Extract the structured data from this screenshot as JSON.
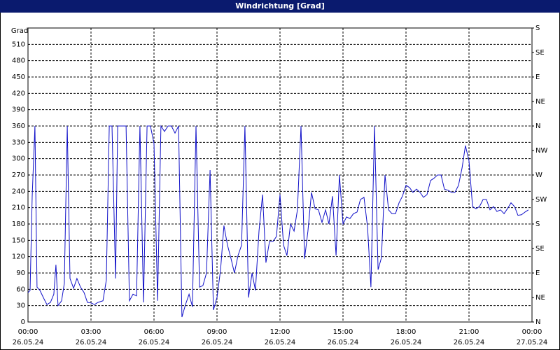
{
  "chart_data": {
    "type": "line",
    "title": "Windrichtung [Grad]",
    "ylabel": "Grad",
    "color": "#1010c8",
    "grid": true,
    "xlim": [
      0,
      24
    ],
    "ylim": [
      0,
      540
    ],
    "y2lim": [
      0,
      540
    ],
    "xticks": [
      {
        "value": 0,
        "label": "00:00"
      },
      {
        "value": 3,
        "label": "03:00"
      },
      {
        "value": 6,
        "label": "06:00"
      },
      {
        "value": 9,
        "label": "09:00"
      },
      {
        "value": 12,
        "label": "12:00"
      },
      {
        "value": 15,
        "label": "15:00"
      },
      {
        "value": 18,
        "label": "18:00"
      },
      {
        "value": 21,
        "label": "21:00"
      },
      {
        "value": 24,
        "label": "00:00"
      }
    ],
    "xtick_dates": [
      "26.05.24",
      "26.05.24",
      "26.05.24",
      "26.05.24",
      "26.05.24",
      "26.05.24",
      "26.05.24",
      "26.05.24",
      "27.05.24"
    ],
    "yticks": [
      0,
      30,
      60,
      90,
      120,
      150,
      180,
      210,
      240,
      270,
      300,
      330,
      360,
      390,
      420,
      450,
      480,
      510
    ],
    "y2ticks": [
      {
        "value": 0,
        "label": "N"
      },
      {
        "value": 45,
        "label": "NE"
      },
      {
        "value": 90,
        "label": "E"
      },
      {
        "value": 135,
        "label": "SE"
      },
      {
        "value": 180,
        "label": "S"
      },
      {
        "value": 225,
        "label": "SW"
      },
      {
        "value": 270,
        "label": "W"
      },
      {
        "value": 315,
        "label": "NW"
      },
      {
        "value": 360,
        "label": "N"
      },
      {
        "value": 405,
        "label": "NE"
      },
      {
        "value": 450,
        "label": "E"
      },
      {
        "value": 495,
        "label": "SE"
      },
      {
        "value": 540,
        "label": "S"
      }
    ],
    "x": [
      0,
      0.1,
      0.2,
      0.33,
      0.43,
      0.57,
      0.73,
      0.9,
      1.07,
      1.23,
      1.33,
      1.43,
      1.6,
      1.73,
      1.87,
      2,
      2.17,
      2.33,
      2.5,
      2.67,
      2.83,
      3,
      3.17,
      3.33,
      3.57,
      3.73,
      3.87,
      4,
      4.17,
      4.27,
      4.4,
      4.53,
      4.67,
      4.83,
      5,
      5.17,
      5.33,
      5.5,
      5.67,
      5.83,
      6,
      6.17,
      6.33,
      6.5,
      6.67,
      6.83,
      7,
      7.17,
      7.33,
      7.5,
      7.67,
      7.83,
      8,
      8.17,
      8.33,
      8.5,
      8.67,
      8.83,
      9,
      9.17,
      9.33,
      9.5,
      9.67,
      9.83,
      10,
      10.17,
      10.33,
      10.5,
      10.67,
      10.83,
      11,
      11.17,
      11.33,
      11.5,
      11.67,
      11.83,
      12,
      12.17,
      12.33,
      12.5,
      12.67,
      12.83,
      13,
      13.17,
      13.33,
      13.5,
      13.67,
      13.83,
      14,
      14.17,
      14.33,
      14.5,
      14.67,
      14.83,
      15,
      15.17,
      15.33,
      15.5,
      15.67,
      15.83,
      16,
      16.17,
      16.33,
      16.5,
      16.67,
      16.83,
      17,
      17.17,
      17.33,
      17.5,
      17.67,
      17.83,
      18,
      18.17,
      18.33,
      18.5,
      18.67,
      18.83,
      19,
      19.17,
      19.33,
      19.5,
      19.67,
      19.83,
      20,
      20.17,
      20.33,
      20.5,
      20.67,
      20.83,
      21,
      21.17,
      21.33,
      21.5,
      21.67,
      21.83,
      22,
      22.17,
      22.33,
      22.5,
      22.67,
      22.83,
      23,
      23.17,
      23.33,
      23.5,
      23.67,
      23.83
    ],
    "values": [
      54,
      58,
      231,
      360,
      64,
      58,
      45,
      32,
      36,
      51,
      105,
      30,
      39,
      71,
      360,
      80,
      62,
      80,
      64,
      54,
      36,
      35,
      32,
      36,
      39,
      77,
      360,
      360,
      80,
      360,
      360,
      360,
      360,
      39,
      51,
      48,
      360,
      36,
      360,
      360,
      328,
      39,
      360,
      350,
      360,
      360,
      347,
      360,
      9,
      32,
      51,
      28,
      360,
      64,
      67,
      90,
      279,
      22,
      45,
      96,
      177,
      141,
      116,
      90,
      122,
      141,
      360,
      45,
      90,
      58,
      167,
      234,
      109,
      148,
      148,
      157,
      234,
      141,
      122,
      180,
      167,
      206,
      360,
      116,
      167,
      238,
      208,
      206,
      183,
      206,
      180,
      231,
      122,
      270,
      180,
      193,
      190,
      199,
      202,
      225,
      229,
      174,
      64,
      360,
      96,
      118,
      270,
      206,
      199,
      199,
      219,
      231,
      251,
      247,
      238,
      244,
      238,
      229,
      234,
      260,
      264,
      270,
      270,
      244,
      242,
      238,
      238,
      251,
      283,
      324,
      296,
      212,
      208,
      212,
      225,
      225,
      206,
      212,
      203,
      206,
      199,
      208,
      219,
      212,
      196,
      197,
      202,
      206
    ]
  }
}
